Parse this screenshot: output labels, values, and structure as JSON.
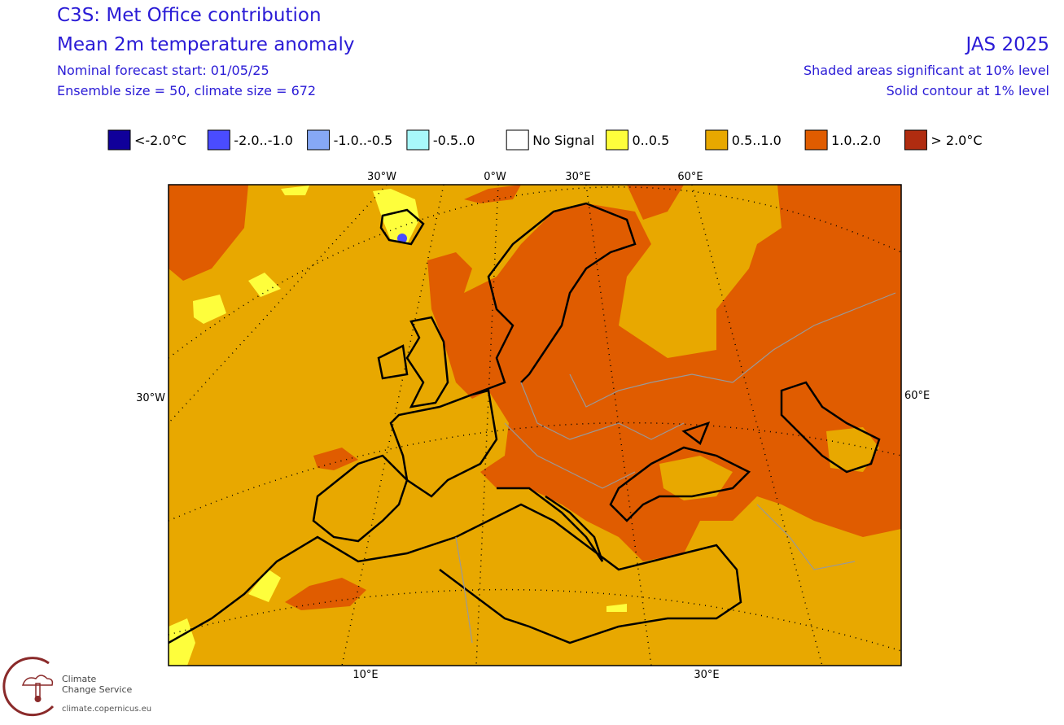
{
  "header": {
    "title": "C3S: Met Office contribution",
    "subtitle": "Mean 2m temperature anomaly",
    "forecast_start": "Nominal forecast start: 01/05/25",
    "ensemble": "Ensemble size = 50, climate size = 672",
    "period": "JAS 2025",
    "note_shading": "Shaded areas significant at 10% level",
    "note_contour": "Solid contour at 1% level"
  },
  "legend": [
    {
      "label": "<-2.0°C",
      "color": "#10009a"
    },
    {
      "label": "-2.0..-1.0",
      "color": "#4a4cff"
    },
    {
      "label": "-1.0..-0.5",
      "color": "#86a8f5"
    },
    {
      "label": "-0.5..0",
      "color": "#a8f8fa"
    },
    {
      "label": "No Signal",
      "color": "#ffffff"
    },
    {
      "label": "0..0.5",
      "color": "#fefe3c"
    },
    {
      "label": "0.5..1.0",
      "color": "#e8a800"
    },
    {
      "label": "1.0..2.0",
      "color": "#e05c00"
    },
    {
      "label": "> 2.0°C",
      "color": "#b02c10"
    }
  ],
  "map": {
    "top_labels": [
      "30°W",
      "0°W",
      "30°E",
      "60°E"
    ],
    "left_label": "30°W",
    "right_label": "60°E",
    "bottom_labels": [
      "10°E",
      "30°E"
    ]
  },
  "logo": {
    "line1": "Climate",
    "line2": "Change Service",
    "url": "climate.copernicus.eu"
  }
}
